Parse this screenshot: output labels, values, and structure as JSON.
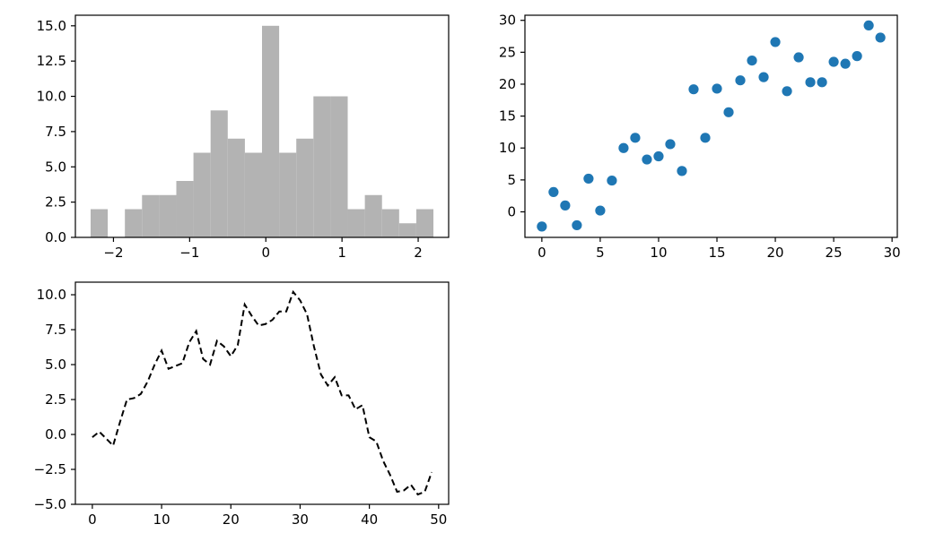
{
  "chart_data": [
    {
      "type": "bar",
      "xlim": [
        -2.5,
        2.4
      ],
      "ylim": [
        0,
        15.75
      ],
      "color": "#b3b3b3",
      "bins": [
        {
          "x0": -2.3,
          "x1": -2.075,
          "count": 2
        },
        {
          "x0": -2.075,
          "x1": -1.85,
          "count": 0
        },
        {
          "x0": -1.85,
          "x1": -1.625,
          "count": 2
        },
        {
          "x0": -1.625,
          "x1": -1.4,
          "count": 3
        },
        {
          "x0": -1.4,
          "x1": -1.175,
          "count": 3
        },
        {
          "x0": -1.175,
          "x1": -0.95,
          "count": 4
        },
        {
          "x0": -0.95,
          "x1": -0.725,
          "count": 6
        },
        {
          "x0": -0.725,
          "x1": -0.5,
          "count": 9
        },
        {
          "x0": -0.5,
          "x1": -0.275,
          "count": 7
        },
        {
          "x0": -0.275,
          "x1": -0.05,
          "count": 6
        },
        {
          "x0": -0.05,
          "x1": 0.175,
          "count": 15
        },
        {
          "x0": 0.175,
          "x1": 0.4,
          "count": 6
        },
        {
          "x0": 0.4,
          "x1": 0.625,
          "count": 7
        },
        {
          "x0": 0.625,
          "x1": 0.85,
          "count": 10
        },
        {
          "x0": 0.85,
          "x1": 1.075,
          "count": 10
        },
        {
          "x0": 1.075,
          "x1": 1.3,
          "count": 2
        },
        {
          "x0": 1.3,
          "x1": 1.525,
          "count": 3
        },
        {
          "x0": 1.525,
          "x1": 1.75,
          "count": 2
        },
        {
          "x0": 1.75,
          "x1": 1.975,
          "count": 1
        },
        {
          "x0": 1.975,
          "x1": 2.2,
          "count": 2
        }
      ],
      "xticks": [
        {
          "value": -2,
          "label": "−2"
        },
        {
          "value": -1,
          "label": "−1"
        },
        {
          "value": 0,
          "label": "0"
        },
        {
          "value": 1,
          "label": "1"
        },
        {
          "value": 2,
          "label": "2"
        }
      ],
      "yticks": [
        {
          "value": 0,
          "label": "0.0"
        },
        {
          "value": 2.5,
          "label": "2.5"
        },
        {
          "value": 5,
          "label": "5.0"
        },
        {
          "value": 7.5,
          "label": "7.5"
        },
        {
          "value": 10,
          "label": "10.0"
        },
        {
          "value": 12.5,
          "label": "12.5"
        },
        {
          "value": 15,
          "label": "15.0"
        }
      ]
    },
    {
      "type": "scatter",
      "xlim": [
        -1.45,
        30.45
      ],
      "ylim": [
        -4.0,
        30.8
      ],
      "color": "#1f77b4",
      "x": [
        0,
        1,
        2,
        3,
        4,
        5,
        6,
        7,
        8,
        9,
        10,
        11,
        12,
        13,
        14,
        15,
        16,
        17,
        18,
        19,
        20,
        21,
        22,
        23,
        24,
        25,
        26,
        27,
        28,
        29
      ],
      "y": [
        -2.3,
        3.1,
        1.0,
        -2.1,
        5.2,
        0.2,
        4.9,
        10.0,
        11.6,
        8.2,
        8.7,
        10.6,
        6.4,
        19.2,
        11.6,
        19.3,
        15.6,
        20.6,
        23.7,
        21.1,
        26.6,
        18.9,
        24.2,
        20.3,
        20.3,
        23.5,
        23.2,
        24.4,
        29.2,
        27.3
      ],
      "xticks": [
        {
          "value": 0,
          "label": "0"
        },
        {
          "value": 5,
          "label": "5"
        },
        {
          "value": 10,
          "label": "10"
        },
        {
          "value": 15,
          "label": "15"
        },
        {
          "value": 20,
          "label": "20"
        },
        {
          "value": 25,
          "label": "25"
        },
        {
          "value": 30,
          "label": "30"
        }
      ],
      "yticks": [
        {
          "value": 0,
          "label": "0"
        },
        {
          "value": 5,
          "label": "5"
        },
        {
          "value": 10,
          "label": "10"
        },
        {
          "value": 15,
          "label": "15"
        },
        {
          "value": 20,
          "label": "20"
        },
        {
          "value": 25,
          "label": "25"
        },
        {
          "value": 30,
          "label": "30"
        }
      ]
    },
    {
      "type": "line",
      "line_style": "dashed",
      "color": "#000000",
      "xlim": [
        -2.45,
        51.45
      ],
      "ylim": [
        -5.0,
        10.9
      ],
      "x": [
        0,
        1,
        2,
        3,
        4,
        5,
        6,
        7,
        8,
        9,
        10,
        11,
        12,
        13,
        14,
        15,
        16,
        17,
        18,
        19,
        20,
        21,
        22,
        23,
        24,
        25,
        26,
        27,
        28,
        29,
        30,
        31,
        32,
        33,
        34,
        35,
        36,
        37,
        38,
        39,
        40,
        41,
        42,
        43,
        44,
        45,
        46,
        47,
        48,
        49
      ],
      "y": [
        -0.2,
        0.2,
        -0.3,
        -0.8,
        0.9,
        2.5,
        2.6,
        2.9,
        3.8,
        5.0,
        6.0,
        4.7,
        4.9,
        5.1,
        6.6,
        7.4,
        5.4,
        5.0,
        6.7,
        6.3,
        5.6,
        6.4,
        9.3,
        8.5,
        7.8,
        7.9,
        8.2,
        8.8,
        8.8,
        10.2,
        9.6,
        8.6,
        6.3,
        4.3,
        3.5,
        4.1,
        2.8,
        2.8,
        1.8,
        2.1,
        -0.2,
        -0.5,
        -1.9,
        -2.9,
        -4.1,
        -4.0,
        -3.6,
        -4.3,
        -4.1,
        -2.7
      ],
      "xticks": [
        {
          "value": 0,
          "label": "0"
        },
        {
          "value": 10,
          "label": "10"
        },
        {
          "value": 20,
          "label": "20"
        },
        {
          "value": 30,
          "label": "30"
        },
        {
          "value": 40,
          "label": "40"
        },
        {
          "value": 50,
          "label": "50"
        }
      ],
      "yticks": [
        {
          "value": -5,
          "label": "−5.0"
        },
        {
          "value": -2.5,
          "label": "−2.5"
        },
        {
          "value": 0,
          "label": "0.0"
        },
        {
          "value": 2.5,
          "label": "2.5"
        },
        {
          "value": 5,
          "label": "5.0"
        },
        {
          "value": 7.5,
          "label": "7.5"
        },
        {
          "value": 10,
          "label": "10.0"
        }
      ]
    }
  ]
}
